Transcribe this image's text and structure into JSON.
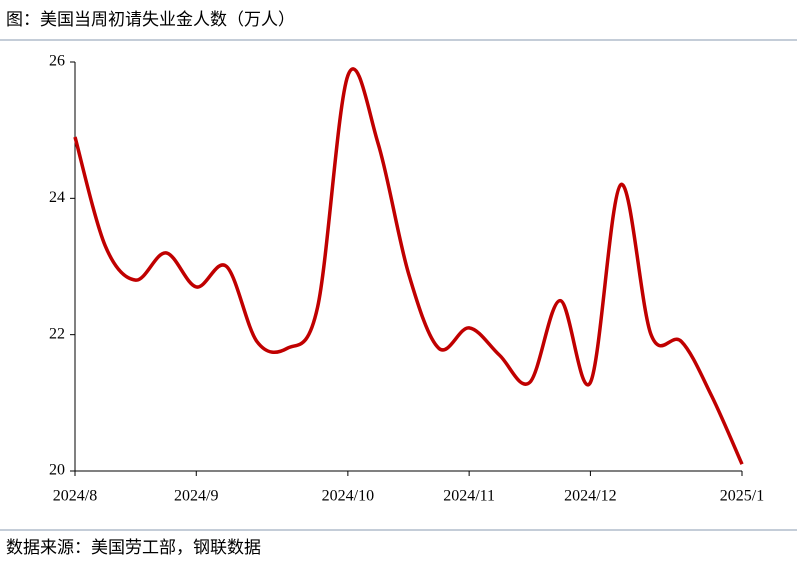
{
  "chart_data": {
    "type": "line",
    "title": "图：美国当周初请失业金人数（万人）",
    "source": "数据来源：美国劳工部，钢联数据",
    "categories": [
      "2024/8",
      null,
      null,
      null,
      "2024/9",
      null,
      null,
      null,
      null,
      "2024/10",
      null,
      null,
      null,
      "2024/11",
      null,
      null,
      null,
      "2024/12",
      null,
      null,
      null,
      null,
      "2025/1"
    ],
    "series": [
      {
        "name": "美国当周初请失业金人数",
        "color": "#c00000",
        "values": [
          24.9,
          23.3,
          22.8,
          23.2,
          22.7,
          23.0,
          21.9,
          21.8,
          22.4,
          25.8,
          24.8,
          22.9,
          21.8,
          22.1,
          21.7,
          21.3,
          22.5,
          21.3,
          24.2,
          22.0,
          21.9,
          21.1,
          20.1
        ]
      }
    ],
    "ylim": [
      20,
      26
    ],
    "yticks": [
      20,
      22,
      24,
      26
    ],
    "grid": false
  }
}
